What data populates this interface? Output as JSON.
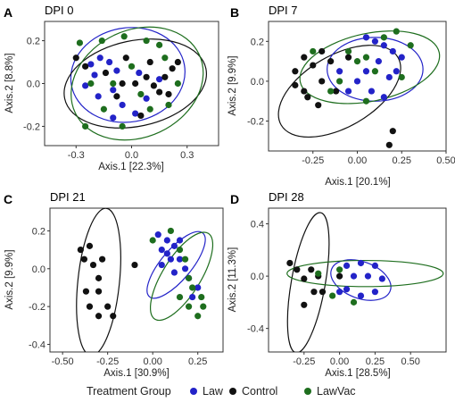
{
  "colors": {
    "Law": "#2323c8",
    "Control": "#111111",
    "LawVac": "#1e6e1e"
  },
  "legend": {
    "title": "Treatment Group",
    "items": [
      "Law",
      "Control",
      "LawVac"
    ]
  },
  "chart_data": [
    {
      "letter": "A",
      "type": "scatter",
      "title": "DPI 0",
      "xlabel": "Axis.1   [22.3%]",
      "ylabel": "Axis.2   [8.8%]",
      "xlim": [
        -0.47,
        0.47
      ],
      "ylim": [
        -0.29,
        0.29
      ],
      "xticks": [
        -0.3,
        0,
        0.3
      ],
      "xtick_labels": [
        "-0.3",
        "0.0",
        "0.3"
      ],
      "yticks": [
        -0.2,
        0,
        0.2
      ],
      "ytick_labels": [
        "-0.2",
        "0.0",
        "0.2"
      ],
      "series": [
        {
          "name": "Law",
          "points": [
            [
              -0.22,
              0.09
            ],
            [
              -0.17,
              0.12
            ],
            [
              -0.12,
              0.1
            ],
            [
              -0.2,
              0.04
            ],
            [
              -0.08,
              0.06
            ],
            [
              -0.1,
              -0.03
            ],
            [
              -0.18,
              -0.06
            ],
            [
              -0.05,
              -0.1
            ],
            [
              0.02,
              -0.14
            ],
            [
              -0.1,
              -0.16
            ],
            [
              0.08,
              -0.07
            ],
            [
              0.15,
              0.02
            ],
            [
              -0.25,
              -0.01
            ],
            [
              0.04,
              0.05
            ]
          ]
        },
        {
          "name": "Control",
          "points": [
            [
              -0.25,
              0.08
            ],
            [
              -0.14,
              0.05
            ],
            [
              -0.05,
              0.0
            ],
            [
              0.02,
              0.0
            ],
            [
              0.08,
              0.03
            ],
            [
              0.12,
              -0.01
            ],
            [
              0.18,
              0.03
            ],
            [
              0.22,
              0.07
            ],
            [
              0.25,
              0.1
            ],
            [
              0.15,
              -0.04
            ],
            [
              -0.08,
              -0.06
            ],
            [
              0.05,
              -0.15
            ],
            [
              -0.3,
              0.12
            ],
            [
              0.2,
              -0.05
            ],
            [
              0.1,
              0.1
            ],
            [
              -0.03,
              0.12
            ]
          ]
        },
        {
          "name": "LawVac",
          "points": [
            [
              -0.28,
              0.19
            ],
            [
              -0.16,
              0.2
            ],
            [
              -0.04,
              0.22
            ],
            [
              0.08,
              0.2
            ],
            [
              0.15,
              0.18
            ],
            [
              -0.22,
              0.0
            ],
            [
              -0.1,
              0.0
            ],
            [
              0.05,
              -0.05
            ],
            [
              0.1,
              -0.12
            ],
            [
              -0.15,
              -0.12
            ],
            [
              0.2,
              -0.1
            ],
            [
              0.25,
              0.0
            ],
            [
              -0.25,
              -0.2
            ],
            [
              0.0,
              0.08
            ],
            [
              -0.05,
              -0.2
            ],
            [
              0.18,
              0.12
            ]
          ]
        }
      ],
      "ellipses": [
        {
          "name": "Law",
          "cx": -0.02,
          "cy": 0.04,
          "rx": 0.31,
          "ry": 0.22,
          "angle": -10
        },
        {
          "name": "Control",
          "cx": 0.02,
          "cy": 0.0,
          "rx": 0.39,
          "ry": 0.2,
          "angle": -12
        },
        {
          "name": "LawVac",
          "cx": 0.03,
          "cy": 0.0,
          "rx": 0.37,
          "ry": 0.25,
          "angle": -25
        }
      ]
    },
    {
      "letter": "B",
      "type": "scatter",
      "title": "DPI 7",
      "xlabel": "Axis.1   [20.1%]",
      "ylabel": "Axis.2   [9.9%]",
      "xlim": [
        -0.5,
        0.5
      ],
      "ylim": [
        -0.35,
        0.3
      ],
      "xticks": [
        -0.25,
        0,
        0.25,
        0.5
      ],
      "xtick_labels": [
        "-0.25",
        "0.00",
        "0.25",
        "0.50"
      ],
      "yticks": [
        -0.2,
        0,
        0.2
      ],
      "ytick_labels": [
        "-0.2",
        "0.0",
        "0.2"
      ],
      "series": [
        {
          "name": "Law",
          "points": [
            [
              0.05,
              0.22
            ],
            [
              0.1,
              0.2
            ],
            [
              0.15,
              0.18
            ],
            [
              0.2,
              0.15
            ],
            [
              0.25,
              0.12
            ],
            [
              0.12,
              0.1
            ],
            [
              0.05,
              0.05
            ],
            [
              0.0,
              0.0
            ],
            [
              0.18,
              0.02
            ],
            [
              0.08,
              -0.05
            ],
            [
              -0.05,
              -0.05
            ],
            [
              0.22,
              0.05
            ],
            [
              -0.1,
              0.05
            ],
            [
              0.15,
              -0.08
            ]
          ]
        },
        {
          "name": "Control",
          "points": [
            [
              -0.35,
              0.05
            ],
            [
              -0.3,
              0.12
            ],
            [
              -0.25,
              0.08
            ],
            [
              -0.2,
              0.15
            ],
            [
              -0.15,
              0.1
            ],
            [
              -0.05,
              0.12
            ],
            [
              -0.3,
              -0.05
            ],
            [
              -0.2,
              0.0
            ],
            [
              -0.28,
              -0.08
            ],
            [
              0.18,
              -0.32
            ],
            [
              0.2,
              -0.25
            ],
            [
              -0.12,
              -0.05
            ],
            [
              -0.22,
              -0.12
            ],
            [
              -0.35,
              -0.02
            ]
          ]
        },
        {
          "name": "LawVac",
          "points": [
            [
              -0.25,
              0.15
            ],
            [
              0.05,
              0.12
            ],
            [
              0.15,
              0.22
            ],
            [
              0.22,
              0.25
            ],
            [
              0.3,
              0.18
            ],
            [
              -0.1,
              0.0
            ],
            [
              0.0,
              0.1
            ],
            [
              0.1,
              0.05
            ],
            [
              -0.05,
              0.15
            ],
            [
              0.05,
              -0.1
            ],
            [
              -0.15,
              -0.05
            ],
            [
              0.25,
              0.02
            ]
          ]
        }
      ],
      "ellipses": [
        {
          "name": "Control",
          "cx": -0.1,
          "cy": -0.05,
          "rx": 0.38,
          "ry": 0.18,
          "angle": -30
        },
        {
          "name": "Law",
          "cx": 0.1,
          "cy": 0.06,
          "rx": 0.27,
          "ry": 0.16,
          "angle": 0
        },
        {
          "name": "LawVac",
          "cx": 0.07,
          "cy": 0.07,
          "rx": 0.4,
          "ry": 0.17,
          "angle": -12
        }
      ]
    },
    {
      "letter": "C",
      "type": "scatter",
      "title": "DPI 21",
      "xlabel": "Axis.1   [30.9%]",
      "ylabel": "Axis.2   [9.9%]",
      "xlim": [
        -0.57,
        0.39
      ],
      "ylim": [
        -0.44,
        0.32
      ],
      "xticks": [
        -0.5,
        -0.25,
        0,
        0.25
      ],
      "xtick_labels": [
        "-0.50",
        "-0.25",
        "0.00",
        "0.25"
      ],
      "yticks": [
        -0.4,
        -0.2,
        0,
        0.2
      ],
      "ytick_labels": [
        "-0.4",
        "-0.2",
        "0.0",
        "0.2"
      ],
      "series": [
        {
          "name": "Law",
          "points": [
            [
              0.03,
              0.18
            ],
            [
              0.08,
              0.15
            ],
            [
              0.12,
              0.12
            ],
            [
              0.05,
              0.1
            ],
            [
              0.1,
              0.05
            ],
            [
              0.15,
              0.05
            ],
            [
              0.18,
              0.0
            ],
            [
              0.12,
              -0.02
            ],
            [
              0.2,
              -0.05
            ],
            [
              0.08,
              0.08
            ],
            [
              0.15,
              0.15
            ],
            [
              0.05,
              0.02
            ],
            [
              0.22,
              -0.15
            ],
            [
              0.25,
              -0.1
            ]
          ]
        },
        {
          "name": "Control",
          "points": [
            [
              -0.4,
              0.1
            ],
            [
              -0.35,
              0.12
            ],
            [
              -0.38,
              0.05
            ],
            [
              -0.33,
              0.02
            ],
            [
              -0.28,
              0.05
            ],
            [
              -0.3,
              -0.05
            ],
            [
              -0.37,
              -0.12
            ],
            [
              -0.3,
              -0.12
            ],
            [
              -0.35,
              -0.2
            ],
            [
              -0.3,
              -0.25
            ],
            [
              -0.25,
              -0.2
            ],
            [
              -0.22,
              -0.25
            ],
            [
              -0.1,
              0.02
            ]
          ]
        },
        {
          "name": "LawVac",
          "points": [
            [
              0.0,
              0.15
            ],
            [
              0.1,
              0.2
            ],
            [
              0.15,
              0.1
            ],
            [
              0.18,
              0.05
            ],
            [
              0.2,
              -0.05
            ],
            [
              0.15,
              -0.15
            ],
            [
              0.2,
              -0.2
            ],
            [
              0.25,
              -0.25
            ],
            [
              0.28,
              -0.2
            ],
            [
              0.22,
              -0.1
            ],
            [
              0.27,
              -0.15
            ]
          ]
        }
      ],
      "ellipses": [
        {
          "name": "Control",
          "cx": -0.3,
          "cy": -0.07,
          "rx": 0.41,
          "ry": 0.11,
          "angle": -84
        },
        {
          "name": "Law",
          "cx": 0.13,
          "cy": 0.02,
          "rx": 0.23,
          "ry": 0.08,
          "angle": -50
        },
        {
          "name": "LawVac",
          "cx": 0.16,
          "cy": -0.04,
          "rx": 0.28,
          "ry": 0.1,
          "angle": -58
        }
      ]
    },
    {
      "letter": "D",
      "type": "scatter",
      "title": "DPI 28",
      "xlabel": "Axis.1   [28.5%]",
      "ylabel": "Axis.2   [11.3%]",
      "xlim": [
        -0.5,
        0.75
      ],
      "ylim": [
        -0.58,
        0.52
      ],
      "xticks": [
        -0.25,
        0,
        0.25,
        0.5
      ],
      "xtick_labels": [
        "-0.25",
        "0.00",
        "0.25",
        "0.50"
      ],
      "yticks": [
        -0.4,
        0,
        0.4
      ],
      "ytick_labels": [
        "-0.4",
        "0.0",
        "0.4"
      ],
      "series": [
        {
          "name": "Law",
          "points": [
            [
              0.05,
              0.08
            ],
            [
              0.15,
              0.1
            ],
            [
              0.25,
              0.08
            ],
            [
              0.2,
              0.0
            ],
            [
              0.1,
              0.0
            ],
            [
              0.3,
              -0.02
            ],
            [
              0.05,
              -0.1
            ],
            [
              0.15,
              -0.15
            ],
            [
              0.25,
              -0.12
            ],
            [
              0.0,
              -0.12
            ]
          ]
        },
        {
          "name": "Control",
          "points": [
            [
              -0.35,
              0.1
            ],
            [
              -0.3,
              0.05
            ],
            [
              -0.2,
              0.05
            ],
            [
              -0.15,
              0.0
            ],
            [
              -0.25,
              -0.02
            ],
            [
              -0.18,
              -0.12
            ],
            [
              -0.25,
              -0.22
            ],
            [
              -0.12,
              -0.12
            ],
            [
              0.0,
              0.0
            ]
          ]
        },
        {
          "name": "LawVac",
          "points": [
            [
              -0.15,
              0.02
            ],
            [
              0.0,
              0.05
            ],
            [
              -0.05,
              -0.15
            ],
            [
              0.1,
              -0.2
            ]
          ]
        }
      ],
      "ellipses": [
        {
          "name": "Control",
          "cx": -0.22,
          "cy": -0.05,
          "rx": 0.5,
          "ry": 0.13,
          "angle": -80
        },
        {
          "name": "Law",
          "cx": 0.15,
          "cy": -0.03,
          "rx": 0.22,
          "ry": 0.14,
          "angle": 20
        },
        {
          "name": "LawVac",
          "cx": 0.18,
          "cy": 0.02,
          "rx": 0.55,
          "ry": 0.1,
          "angle": 0
        }
      ]
    }
  ]
}
